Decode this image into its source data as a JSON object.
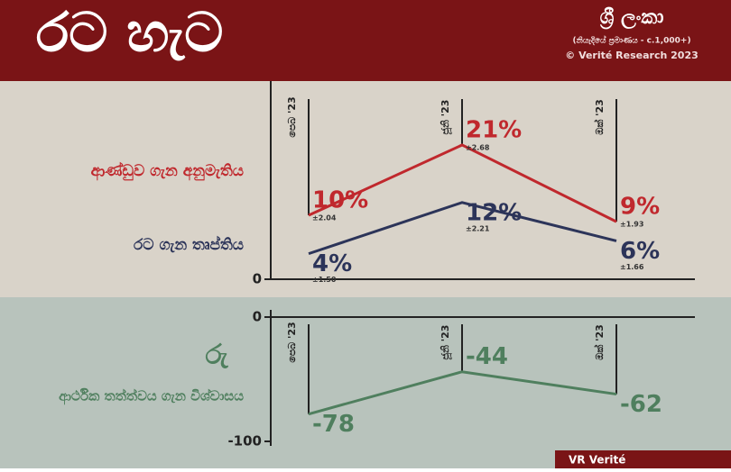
{
  "header": {
    "title": "රට හැට",
    "country": "ශ්‍රී ලංකා",
    "sample": "(නියැදියේ ප්‍රමාණය - c.1,000+)",
    "copyright": "© Verité Research 2023",
    "logo": "VR Verité"
  },
  "chart_data": [
    {
      "type": "line",
      "categories": [
        "පෙබ '23",
        "ජූනි '23",
        "ඔක් '23"
      ],
      "ylim": [
        0,
        31
      ],
      "yticks": [
        0
      ],
      "series": [
        {
          "name": "ආණ්ඩුව ගැන අනුමැතිය",
          "color": "#c0282d",
          "values": [
            10,
            21,
            9
          ],
          "value_labels": [
            "10%",
            "21%",
            "9%"
          ],
          "error_labels": [
            "±2.04",
            "±2.68",
            "±1.93"
          ]
        },
        {
          "name": "රට ගැන තෘප්තිය",
          "color": "#2c3459",
          "values": [
            4,
            12,
            6
          ],
          "value_labels": [
            "4%",
            "12%",
            "6%"
          ],
          "error_labels": [
            "±1.50",
            "±2.21",
            "±1.66"
          ]
        }
      ]
    },
    {
      "type": "line",
      "categories": [
        "පෙබ '23",
        "ජූනි '23",
        "ඔක් '23"
      ],
      "ylim": [
        -100,
        0
      ],
      "yticks": [
        -100,
        0
      ],
      "series": [
        {
          "name": "ආර්ථික තත්ත්වය ගැන විශ්වාසය",
          "symbol": "රු",
          "color": "#4f7f5e",
          "values": [
            -78,
            -44,
            -62
          ]
        }
      ]
    }
  ]
}
